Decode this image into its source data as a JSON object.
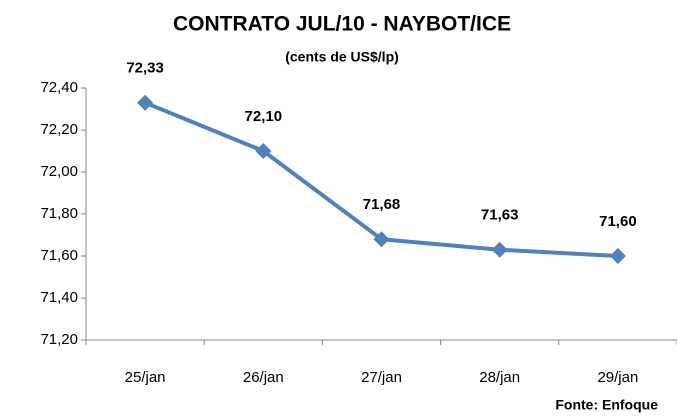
{
  "chart_data": {
    "type": "line",
    "title": "CONTRATO JUL/10 - NAYBOT/ICE",
    "subtitle": "(cents de US$/lp)",
    "categories": [
      "25/jan",
      "26/jan",
      "27/jan",
      "28/jan",
      "29/jan"
    ],
    "series": [
      {
        "color": "#4f81bd",
        "values": [
          72.33,
          72.1,
          71.68,
          71.63,
          71.6
        ],
        "value_labels": [
          "72,33",
          "72,10",
          "71,68",
          "71,63",
          "71,60"
        ]
      }
    ],
    "ylim": [
      71.2,
      72.4
    ],
    "yticks": [
      {
        "value": 71.2,
        "label": "71,20"
      },
      {
        "value": 71.4,
        "label": "71,40"
      },
      {
        "value": 71.6,
        "label": "71,60"
      },
      {
        "value": 71.8,
        "label": "71,80"
      },
      {
        "value": 72.0,
        "label": "72,00"
      },
      {
        "value": 72.2,
        "label": "72,20"
      },
      {
        "value": 72.4,
        "label": "72,40"
      }
    ],
    "grid": false,
    "source": "Fonte: Enfoque"
  }
}
